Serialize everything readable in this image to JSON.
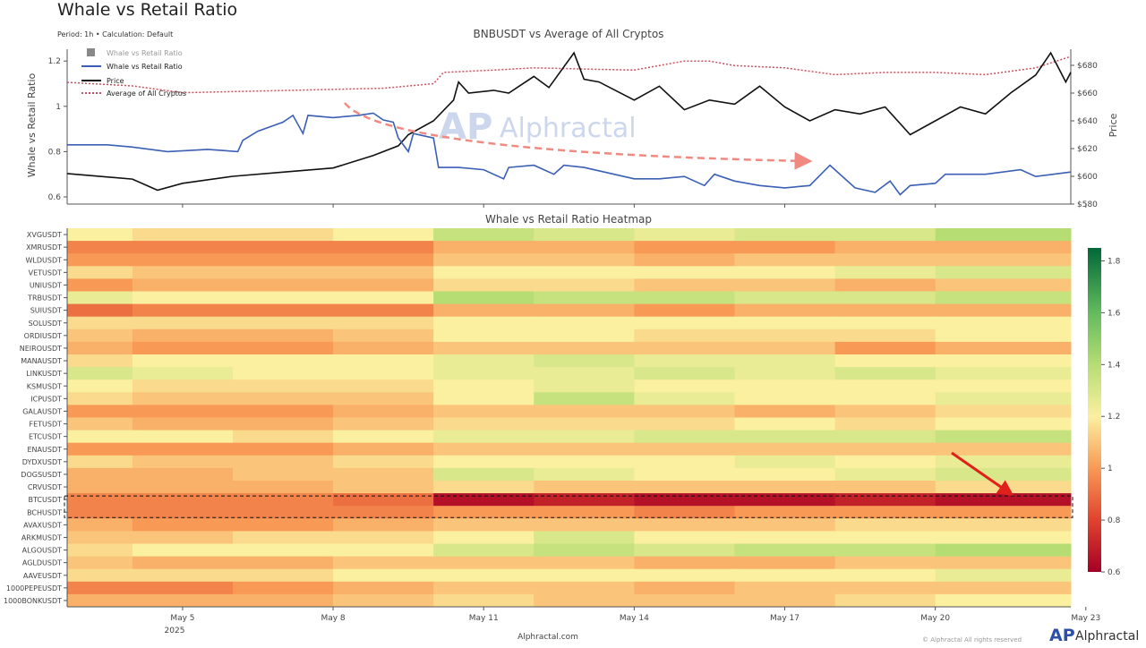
{
  "page": {
    "title": "Whale vs Retail Ratio",
    "subtitle": "Period: 1h • Calculation: Default",
    "footer_site": "Alphractal.com",
    "brand": "Alphractal",
    "copyright": "© Alphractal All rights reserved",
    "watermark": "Alphractal"
  },
  "colors": {
    "whale_line": "#3a5fb5",
    "price_line": "#111111",
    "average_line": "#c9505e",
    "trend_arrow": "#f08a80",
    "highlight_arrow": "#e0201a"
  },
  "chart_data": [
    {
      "type": "line",
      "title": "BNBUSDT vs Average of All Cryptos",
      "ylabel": "Whale vs Retail Ratio",
      "y2label": "Price",
      "ylim": [
        0.57,
        1.27
      ],
      "y2lim": [
        578,
        695
      ],
      "yticks": [
        "0.6",
        "0.8",
        "1",
        "1.2"
      ],
      "y2ticks": [
        "$580",
        "$600",
        "$620",
        "$640",
        "$660",
        "$680"
      ],
      "xticks": [
        "May 5",
        "May 8",
        "May 11",
        "May 14",
        "May 17",
        "May 20",
        "May 23"
      ],
      "xrange_day_of_may": [
        2.7,
        22.7
      ],
      "legend": [
        "Whale vs Retail Ratio",
        "Whale vs Retail Ratio",
        "Price",
        "Average of All Cryptos"
      ],
      "legend_placement": "top-left",
      "series": [
        {
          "name": "Whale vs Retail Ratio",
          "axis": "left",
          "x": [
            2.7,
            3.5,
            4,
            4.7,
            5.5,
            6.1,
            6.2,
            6.5,
            7.0,
            7.2,
            7.4,
            7.5,
            8.0,
            8.5,
            8.8,
            9.0,
            9.2,
            9.3,
            9.5,
            9.6,
            10.0,
            10.1,
            10.5,
            11,
            11.4,
            11.5,
            12,
            12.4,
            12.6,
            13,
            13.6,
            14,
            14.5,
            15,
            15.4,
            15.6,
            16,
            16.5,
            17,
            17.5,
            17.9,
            18.4,
            18.8,
            19.1,
            19.3,
            19.5,
            20,
            20.2,
            21,
            21.7,
            22,
            22.7
          ],
          "y": [
            0.83,
            0.83,
            0.82,
            0.8,
            0.81,
            0.8,
            0.85,
            0.89,
            0.93,
            0.96,
            0.88,
            0.96,
            0.95,
            0.96,
            0.97,
            0.94,
            0.93,
            0.86,
            0.8,
            0.88,
            0.86,
            0.73,
            0.73,
            0.72,
            0.68,
            0.73,
            0.74,
            0.7,
            0.74,
            0.73,
            0.7,
            0.68,
            0.68,
            0.69,
            0.65,
            0.7,
            0.67,
            0.65,
            0.64,
            0.65,
            0.74,
            0.64,
            0.62,
            0.67,
            0.61,
            0.65,
            0.66,
            0.7,
            0.7,
            0.72,
            0.69,
            0.71
          ]
        },
        {
          "name": "Price",
          "axis": "right",
          "x": [
            2.7,
            4,
            4.5,
            5,
            6,
            7,
            8,
            8.8,
            9.3,
            9.5,
            10,
            10.4,
            10.5,
            10.7,
            11.2,
            11.5,
            12,
            12.3,
            12.8,
            13,
            13.3,
            14,
            14.5,
            15,
            15.5,
            16,
            16.5,
            17,
            17.5,
            18,
            18.5,
            19,
            19.5,
            20,
            20.5,
            21,
            21.5,
            22,
            22.3,
            22.6,
            22.7
          ],
          "y": [
            602,
            598,
            590,
            595,
            600,
            603,
            606,
            615,
            622,
            630,
            640,
            655,
            668,
            660,
            662,
            660,
            672,
            664,
            689,
            670,
            668,
            655,
            665,
            648,
            655,
            652,
            665,
            650,
            640,
            648,
            645,
            650,
            630,
            640,
            650,
            645,
            660,
            673,
            689,
            668,
            675
          ]
        },
        {
          "name": "Average of All Cryptos",
          "axis": "left",
          "x": [
            2.7,
            4,
            5,
            7,
            9,
            10,
            10.2,
            11.2,
            12,
            13,
            14,
            15,
            15.5,
            16,
            17,
            18,
            19,
            20,
            21,
            22,
            22.7
          ],
          "y": [
            1.106,
            1.09,
            1.06,
            1.07,
            1.08,
            1.1,
            1.15,
            1.16,
            1.17,
            1.165,
            1.16,
            1.2,
            1.2,
            1.18,
            1.17,
            1.14,
            1.15,
            1.15,
            1.14,
            1.17,
            1.22
          ]
        }
      ]
    },
    {
      "type": "heatmap",
      "title": "Whale vs Retail Ratio Heatmap",
      "colorscale": "RdYlGn",
      "zlim": [
        0.6,
        1.85
      ],
      "colorbar_ticks": [
        "0.6",
        "0.8",
        "1",
        "1.2",
        "1.4",
        "1.6",
        "1.8"
      ],
      "xticks": [
        "May 5",
        "May 8",
        "May 11",
        "May 14",
        "May 17",
        "May 20",
        "May 23"
      ],
      "xyear": "2025",
      "columns_day_of_may": [
        3,
        5,
        7,
        9,
        11,
        13,
        15,
        17,
        19,
        21
      ],
      "highlighted_rows": [
        "BTCUSDT",
        "BCHUSDT"
      ],
      "rows": [
        {
          "label": "XVGUSDT",
          "values": [
            1.2,
            1.15,
            1.15,
            1.2,
            1.35,
            1.3,
            1.25,
            1.3,
            1.3,
            1.4
          ]
        },
        {
          "label": "XMRUSDT",
          "values": [
            0.95,
            0.95,
            0.95,
            0.95,
            1.05,
            1.05,
            1.0,
            1.0,
            1.05,
            1.05
          ]
        },
        {
          "label": "WLDUSDT",
          "values": [
            1.0,
            1.0,
            1.0,
            1.0,
            1.1,
            1.1,
            1.05,
            1.1,
            1.1,
            1.1
          ]
        },
        {
          "label": "VETUSDT",
          "values": [
            1.15,
            1.1,
            1.1,
            1.1,
            1.2,
            1.2,
            1.2,
            1.2,
            1.25,
            1.3
          ]
        },
        {
          "label": "UNIUSDT",
          "values": [
            1.0,
            1.05,
            1.05,
            1.05,
            1.15,
            1.15,
            1.1,
            1.1,
            1.05,
            1.1
          ]
        },
        {
          "label": "TRBUSDT",
          "values": [
            1.25,
            1.2,
            1.2,
            1.2,
            1.4,
            1.35,
            1.35,
            1.3,
            1.3,
            1.35
          ]
        },
        {
          "label": "SUIUSDT",
          "values": [
            0.9,
            0.95,
            0.95,
            0.95,
            1.05,
            1.05,
            1.0,
            1.05,
            1.05,
            1.05
          ]
        },
        {
          "label": "SOLUSDT",
          "values": [
            1.15,
            1.15,
            1.15,
            1.15,
            1.2,
            1.2,
            1.2,
            1.2,
            1.2,
            1.2
          ]
        },
        {
          "label": "ORDIUSDT",
          "values": [
            1.1,
            1.05,
            1.05,
            1.1,
            1.2,
            1.2,
            1.15,
            1.15,
            1.15,
            1.2
          ]
        },
        {
          "label": "NEIROUSDT",
          "values": [
            1.05,
            1.0,
            1.0,
            1.05,
            1.1,
            1.1,
            1.1,
            1.1,
            1.0,
            1.05
          ]
        },
        {
          "label": "MANAUSDT",
          "values": [
            1.15,
            1.2,
            1.2,
            1.2,
            1.25,
            1.3,
            1.25,
            1.25,
            1.2,
            1.2
          ]
        },
        {
          "label": "LINKUSDT",
          "values": [
            1.3,
            1.25,
            1.2,
            1.2,
            1.25,
            1.25,
            1.3,
            1.25,
            1.3,
            1.25
          ]
        },
        {
          "label": "KSMUSDT",
          "values": [
            1.2,
            1.15,
            1.15,
            1.15,
            1.2,
            1.25,
            1.2,
            1.2,
            1.2,
            1.2
          ]
        },
        {
          "label": "ICPUSDT",
          "values": [
            1.15,
            1.1,
            1.1,
            1.1,
            1.2,
            1.35,
            1.25,
            1.2,
            1.2,
            1.25
          ]
        },
        {
          "label": "GALAUSDT",
          "values": [
            1.0,
            1.0,
            1.0,
            1.05,
            1.1,
            1.1,
            1.1,
            1.05,
            1.1,
            1.15
          ]
        },
        {
          "label": "FETUSDT",
          "values": [
            1.1,
            1.05,
            1.05,
            1.1,
            1.15,
            1.15,
            1.15,
            1.2,
            1.15,
            1.2
          ]
        },
        {
          "label": "ETCUSDT",
          "values": [
            1.2,
            1.2,
            1.15,
            1.2,
            1.25,
            1.25,
            1.3,
            1.3,
            1.3,
            1.35
          ]
        },
        {
          "label": "ENAUSDT",
          "values": [
            1.0,
            1.0,
            1.0,
            1.05,
            1.1,
            1.1,
            1.1,
            1.1,
            1.1,
            1.1
          ]
        },
        {
          "label": "DYDXUSDT",
          "values": [
            1.15,
            1.1,
            1.1,
            1.15,
            1.2,
            1.2,
            1.2,
            1.25,
            1.2,
            1.25
          ]
        },
        {
          "label": "DOGSUSDT",
          "values": [
            1.05,
            1.05,
            1.1,
            1.1,
            1.3,
            1.25,
            1.2,
            1.2,
            1.25,
            1.3
          ]
        },
        {
          "label": "CRVUSDT",
          "values": [
            1.05,
            1.05,
            1.05,
            1.1,
            1.15,
            1.1,
            1.1,
            1.1,
            1.1,
            1.15
          ]
        },
        {
          "label": "BTCUSDT",
          "values": [
            0.95,
            0.95,
            0.95,
            0.9,
            0.65,
            0.7,
            0.65,
            0.65,
            0.7,
            0.65
          ]
        },
        {
          "label": "BCHUSDT",
          "values": [
            0.95,
            0.95,
            0.95,
            0.95,
            1.0,
            1.0,
            0.95,
            1.0,
            1.0,
            1.0
          ]
        },
        {
          "label": "AVAXUSDT",
          "values": [
            1.05,
            1.0,
            1.0,
            1.05,
            1.1,
            1.1,
            1.1,
            1.1,
            1.15,
            1.15
          ]
        },
        {
          "label": "ARKMUSDT",
          "values": [
            1.1,
            1.1,
            1.15,
            1.15,
            1.2,
            1.3,
            1.2,
            1.2,
            1.2,
            1.2
          ]
        },
        {
          "label": "ALGOUSDT",
          "values": [
            1.15,
            1.2,
            1.2,
            1.2,
            1.3,
            1.35,
            1.3,
            1.35,
            1.35,
            1.4
          ]
        },
        {
          "label": "AGLDUSDT",
          "values": [
            1.1,
            1.05,
            1.05,
            1.1,
            1.1,
            1.1,
            1.05,
            1.05,
            1.1,
            1.1
          ]
        },
        {
          "label": "AAVEUSDT",
          "values": [
            1.15,
            1.15,
            1.15,
            1.2,
            1.2,
            1.2,
            1.2,
            1.2,
            1.2,
            1.25
          ]
        },
        {
          "label": "1000PEPEUSDT",
          "values": [
            0.95,
            0.95,
            1.0,
            1.05,
            1.1,
            1.1,
            1.05,
            1.1,
            1.1,
            1.1
          ]
        },
        {
          "label": "1000BONKUSDT",
          "values": [
            1.05,
            1.05,
            1.05,
            1.1,
            1.15,
            1.1,
            1.1,
            1.1,
            1.15,
            1.2
          ]
        }
      ]
    }
  ]
}
